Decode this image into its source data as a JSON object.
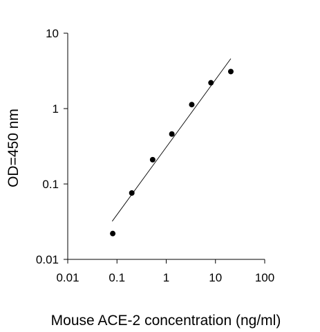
{
  "chart_data": {
    "type": "scatter",
    "title": "",
    "xlabel": "Mouse ACE-2 concentration (ng/ml)",
    "ylabel": "OD=450 nm",
    "x_scale": "log",
    "y_scale": "log",
    "xlim": [
      0.01,
      100
    ],
    "ylim": [
      0.01,
      10
    ],
    "x_ticks": [
      0.01,
      0.1,
      1,
      10,
      100
    ],
    "x_tick_labels": [
      "0.01",
      "0.1",
      "1",
      "10",
      "100"
    ],
    "y_ticks": [
      0.01,
      0.1,
      1,
      10
    ],
    "y_tick_labels": [
      "0.01",
      "0.1",
      "1",
      "10"
    ],
    "grid": false,
    "legend": "none",
    "series": [
      {
        "points": [
          {
            "x": 0.082,
            "y": 0.022
          },
          {
            "x": 0.2,
            "y": 0.076
          },
          {
            "x": 0.53,
            "y": 0.21
          },
          {
            "x": 1.3,
            "y": 0.46
          },
          {
            "x": 3.3,
            "y": 1.13
          },
          {
            "x": 8.1,
            "y": 2.2
          },
          {
            "x": 20.5,
            "y": 3.1
          }
        ]
      }
    ],
    "trendline": {
      "type": "linear-log",
      "x": [
        0.08,
        20.5
      ],
      "y": [
        0.032,
        4.6
      ]
    },
    "colors": {
      "marker": "#000000",
      "axis": "#000000",
      "trendline": "#000000"
    }
  }
}
